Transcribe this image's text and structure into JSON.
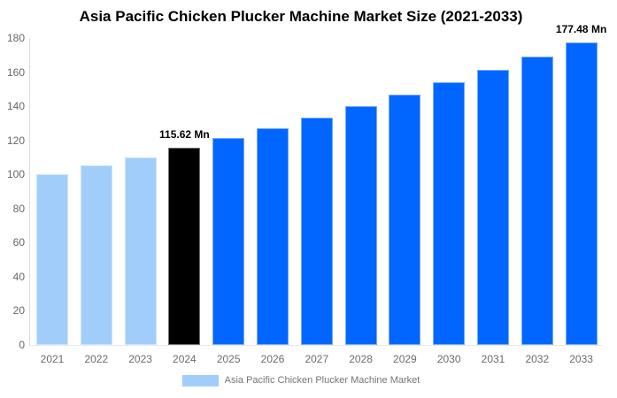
{
  "title": "Asia Pacific Chicken Plucker Machine Market Size (2021-2033)",
  "legend": {
    "label": "Asia Pacific Chicken Plucker Machine Market",
    "swatch_color": "#A1CDFB"
  },
  "colors": {
    "series_light_blue": "#A1CDFB",
    "series_dark_blue": "#0066FF",
    "highlight_black": "#000000",
    "axis_line": "#DBDBDB",
    "axis_text": "#666666",
    "legend_text": "#757575"
  },
  "chart_data": {
    "type": "bar",
    "title": "Asia Pacific Chicken Plucker Machine Market Size (2021-2033)",
    "categories": [
      "2021",
      "2022",
      "2023",
      "2024",
      "2025",
      "2026",
      "2027",
      "2028",
      "2029",
      "2030",
      "2031",
      "2032",
      "2033"
    ],
    "series": [
      {
        "name": "Asia Pacific Chicken Plucker Machine Market",
        "unit": "Mn",
        "values": [
          100.2,
          105.1,
          110.2,
          115.62,
          121.3,
          127.2,
          133.4,
          139.9,
          146.7,
          153.9,
          161.4,
          169.2,
          177.48
        ]
      }
    ],
    "bar_colors": [
      "#A1CDFB",
      "#A1CDFB",
      "#A1CDFB",
      "#000000",
      "#0066FF",
      "#0066FF",
      "#0066FF",
      "#0066FF",
      "#0066FF",
      "#0066FF",
      "#0066FF",
      "#0066FF",
      "#0066FF"
    ],
    "annotations": [
      {
        "category_index": 3,
        "text": "115.62 Mn"
      },
      {
        "category_index": 12,
        "text": "177.48 Mn"
      }
    ],
    "xlabel": "",
    "ylabel": "",
    "ylim": [
      0,
      180
    ],
    "yticks": [
      0,
      20,
      40,
      60,
      80,
      100,
      120,
      140,
      160,
      180
    ],
    "grid": false,
    "legend_position": "bottom"
  }
}
